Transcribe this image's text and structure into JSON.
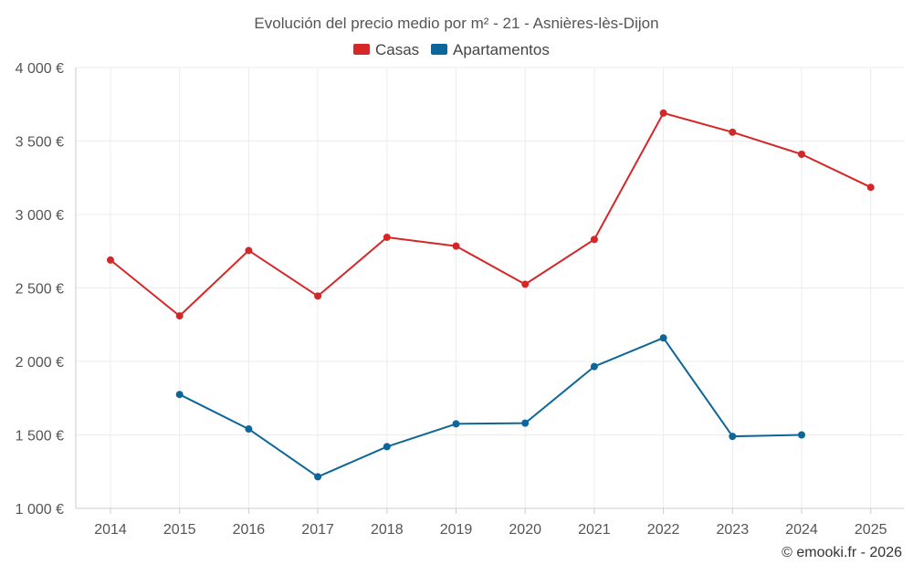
{
  "chart_data": {
    "type": "line",
    "title": "Evolución del precio medio por m² - 21 - Asnières-lès-Dijon",
    "categories": [
      "2014",
      "2015",
      "2016",
      "2017",
      "2018",
      "2019",
      "2020",
      "2021",
      "2022",
      "2023",
      "2024",
      "2025"
    ],
    "ylim": [
      1000,
      4000
    ],
    "yticks": [
      1000,
      1500,
      2000,
      2500,
      3000,
      3500,
      4000
    ],
    "ytick_labels": [
      "1 000 €",
      "1 500 €",
      "2 000 €",
      "2 500 €",
      "3 000 €",
      "3 500 €",
      "4 000 €"
    ],
    "grid": true,
    "legend_position": "top-center",
    "series": [
      {
        "name": "Casas",
        "color": "#d62728",
        "values": [
          2690,
          2310,
          2755,
          2445,
          2845,
          2785,
          2525,
          2830,
          3690,
          3560,
          3410,
          3185
        ]
      },
      {
        "name": "Apartamentos",
        "color": "#0d6699",
        "values": [
          null,
          1775,
          1540,
          1215,
          1420,
          1575,
          1580,
          1965,
          2160,
          1490,
          1500,
          null
        ]
      }
    ]
  },
  "credit": "© emooki.fr - 2026"
}
